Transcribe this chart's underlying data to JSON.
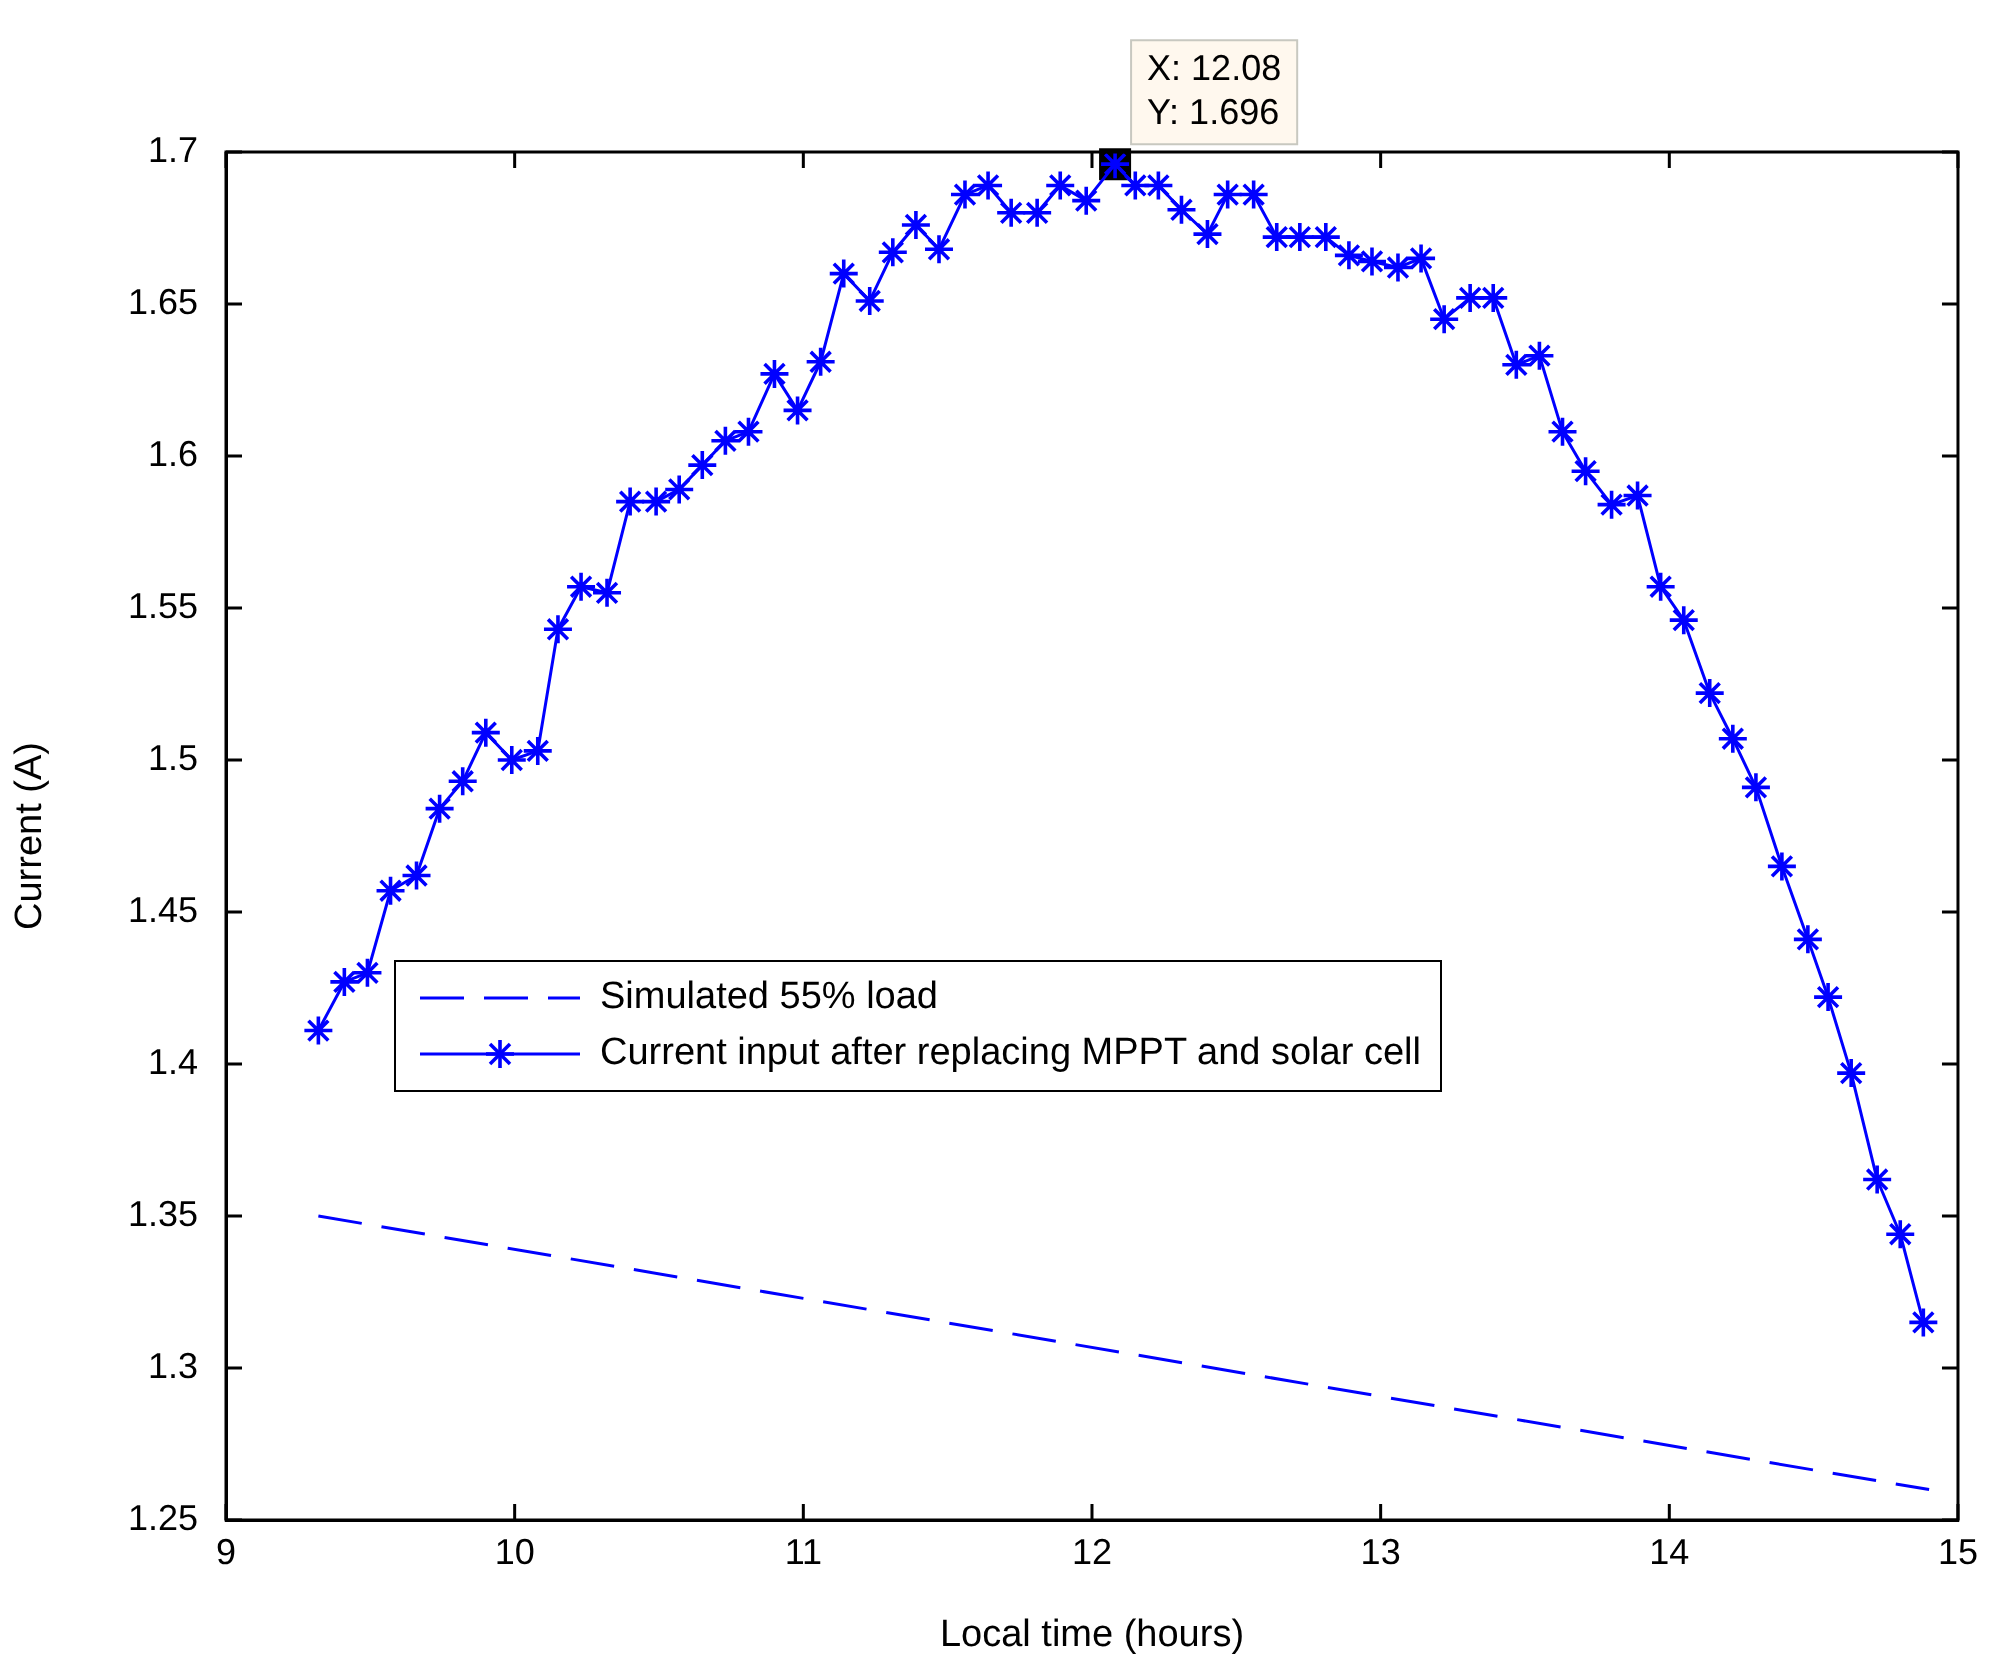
{
  "chart_data": {
    "type": "line",
    "xlabel": "Local time (hours)",
    "ylabel": "Current (A)",
    "xlim": [
      9,
      15
    ],
    "xticks": [
      9,
      10,
      11,
      12,
      13,
      14,
      15
    ],
    "ylim": [
      1.25,
      1.7
    ],
    "yticks": [
      1.25,
      1.3,
      1.35,
      1.4,
      1.45,
      1.5,
      1.55,
      1.6,
      1.65,
      1.7
    ],
    "grid": false,
    "legend": "left",
    "series": [
      {
        "name": "Simulated 55% load",
        "color": "#0000ff",
        "line_style": "dashed",
        "marker": "none",
        "x": [
          9.32,
          14.9
        ],
        "values": [
          1.35,
          1.26
        ]
      },
      {
        "name": "Current input after replacing MPPT and solar cell",
        "color": "#0000ff",
        "line_style": "solid",
        "marker": "cross",
        "x": [
          9.32,
          9.41,
          9.49,
          9.57,
          9.66,
          9.74,
          9.82,
          9.9,
          9.99,
          10.08,
          10.15,
          10.23,
          10.32,
          10.4,
          10.49,
          10.57,
          10.65,
          10.73,
          10.81,
          10.9,
          10.98,
          11.06,
          11.14,
          11.23,
          11.31,
          11.39,
          11.47,
          11.56,
          11.64,
          11.72,
          11.81,
          11.89,
          11.98,
          12.08,
          12.15,
          12.23,
          12.31,
          12.4,
          12.47,
          12.56,
          12.64,
          12.72,
          12.81,
          12.89,
          12.97,
          13.06,
          13.14,
          13.22,
          13.31,
          13.39,
          13.47,
          13.55,
          13.63,
          13.71,
          13.8,
          13.89,
          13.97,
          14.05,
          14.14,
          14.22,
          14.3,
          14.39,
          14.48,
          14.55,
          14.63,
          14.72,
          14.8,
          14.88
        ],
        "values": [
          1.411,
          1.427,
          1.43,
          1.457,
          1.462,
          1.484,
          1.493,
          1.509,
          1.5,
          1.503,
          1.543,
          1.557,
          1.555,
          1.585,
          1.585,
          1.589,
          1.597,
          1.605,
          1.608,
          1.627,
          1.615,
          1.631,
          1.66,
          1.651,
          1.667,
          1.676,
          1.668,
          1.686,
          1.689,
          1.68,
          1.68,
          1.689,
          1.684,
          1.696,
          1.689,
          1.689,
          1.681,
          1.673,
          1.686,
          1.686,
          1.672,
          1.672,
          1.672,
          1.666,
          1.664,
          1.662,
          1.665,
          1.645,
          1.652,
          1.652,
          1.63,
          1.633,
          1.608,
          1.595,
          1.584,
          1.587,
          1.557,
          1.546,
          1.522,
          1.507,
          1.491,
          1.465,
          1.441,
          1.422,
          1.397,
          1.362,
          1.344,
          1.315
        ]
      }
    ],
    "annotations": [
      {
        "text": "X: 12.08\nY: 1.696",
        "x": 12.08,
        "y": 1.696
      }
    ]
  }
}
